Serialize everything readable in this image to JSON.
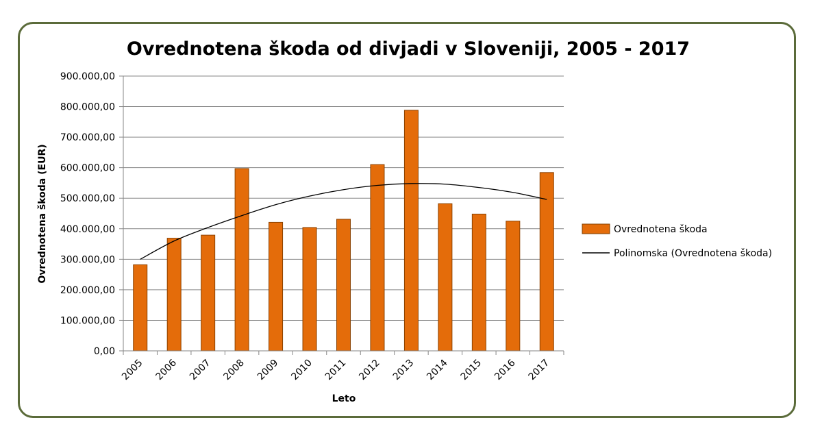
{
  "chart_data": {
    "type": "bar",
    "title": "Ovrednotena škoda od divjadi v Sloveniji, 2005 - 2017",
    "xlabel": "Leto",
    "ylabel": "Ovrednotena škoda (EUR)",
    "ylim": [
      0,
      900000
    ],
    "yticks": [
      0,
      100000,
      200000,
      300000,
      400000,
      500000,
      600000,
      700000,
      800000,
      900000
    ],
    "ytick_labels": [
      "0,00",
      "100.000,00",
      "200.000,00",
      "300.000,00",
      "400.000,00",
      "500.000,00",
      "600.000,00",
      "700.000,00",
      "800.000,00",
      "900.000,00"
    ],
    "categories": [
      "2005",
      "2006",
      "2007",
      "2008",
      "2009",
      "2010",
      "2011",
      "2012",
      "2013",
      "2014",
      "2015",
      "2016",
      "2017"
    ],
    "series": [
      {
        "name": "Ovrednotena škoda",
        "type": "bar",
        "color": "#e46c0a",
        "values": [
          282000,
          369000,
          379000,
          597000,
          421000,
          404000,
          431000,
          610000,
          788000,
          482000,
          448000,
          425000,
          584000
        ]
      },
      {
        "name": "Polinomska (Ovrednotena škoda)",
        "type": "trendline",
        "color": "#000000",
        "values": [
          300000,
          360000,
          404000,
          443000,
          479000,
          507000,
          528000,
          542000,
          548000,
          546000,
          535000,
          519000,
          496000
        ]
      }
    ],
    "grid": true,
    "legend_position": "right"
  }
}
